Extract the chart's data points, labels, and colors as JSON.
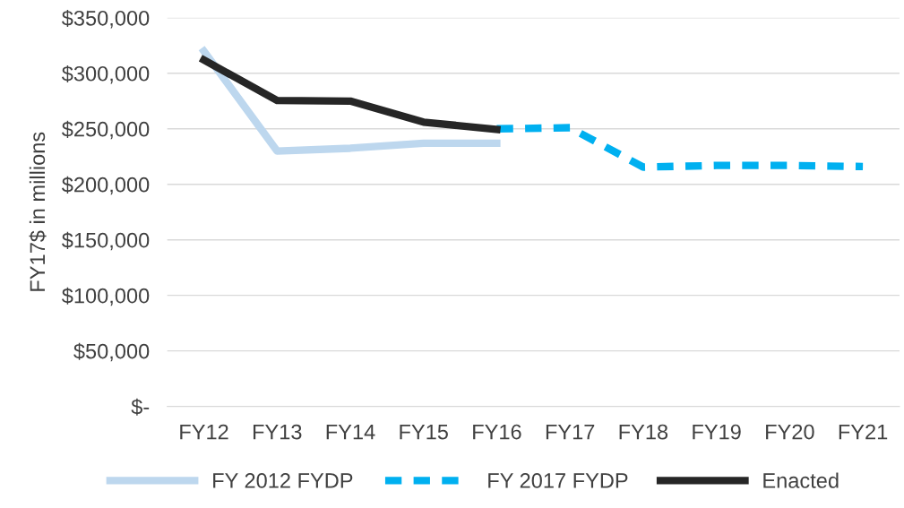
{
  "chart_data": {
    "type": "line",
    "ylabel": "FY17$ in millions",
    "categories": [
      "FY12",
      "FY13",
      "FY14",
      "FY15",
      "FY16",
      "FY17",
      "FY18",
      "FY19",
      "FY20",
      "FY21"
    ],
    "series": [
      {
        "name": "FY 2012 FYDP",
        "color": "#bdd7ee",
        "line_style": "solid",
        "values": [
          320000,
          230000,
          232500,
          237000,
          237000,
          null,
          null,
          null,
          null,
          null
        ]
      },
      {
        "name": "FY 2017 FYDP",
        "color": "#00b0f0",
        "line_style": "dashed",
        "values": [
          null,
          null,
          null,
          null,
          250000,
          251000,
          215500,
          217000,
          217000,
          216000
        ]
      },
      {
        "name": "Enacted",
        "color": "#262626",
        "line_style": "solid",
        "values": [
          312000,
          275500,
          275000,
          256000,
          249500,
          null,
          null,
          null,
          null,
          null
        ]
      }
    ],
    "ylim": [
      0,
      350000
    ],
    "yticks": [
      {
        "value": 0,
        "label": "$-"
      },
      {
        "value": 50000,
        "label": "$50,000"
      },
      {
        "value": 100000,
        "label": "$100,000"
      },
      {
        "value": 150000,
        "label": "$150,000"
      },
      {
        "value": 200000,
        "label": "$200,000"
      },
      {
        "value": 250000,
        "label": "$250,000"
      },
      {
        "value": 300000,
        "label": "$300,000"
      },
      {
        "value": 350000,
        "label": "$350,000"
      }
    ],
    "grid": "y",
    "legend": "bottom",
    "marker": "none"
  }
}
